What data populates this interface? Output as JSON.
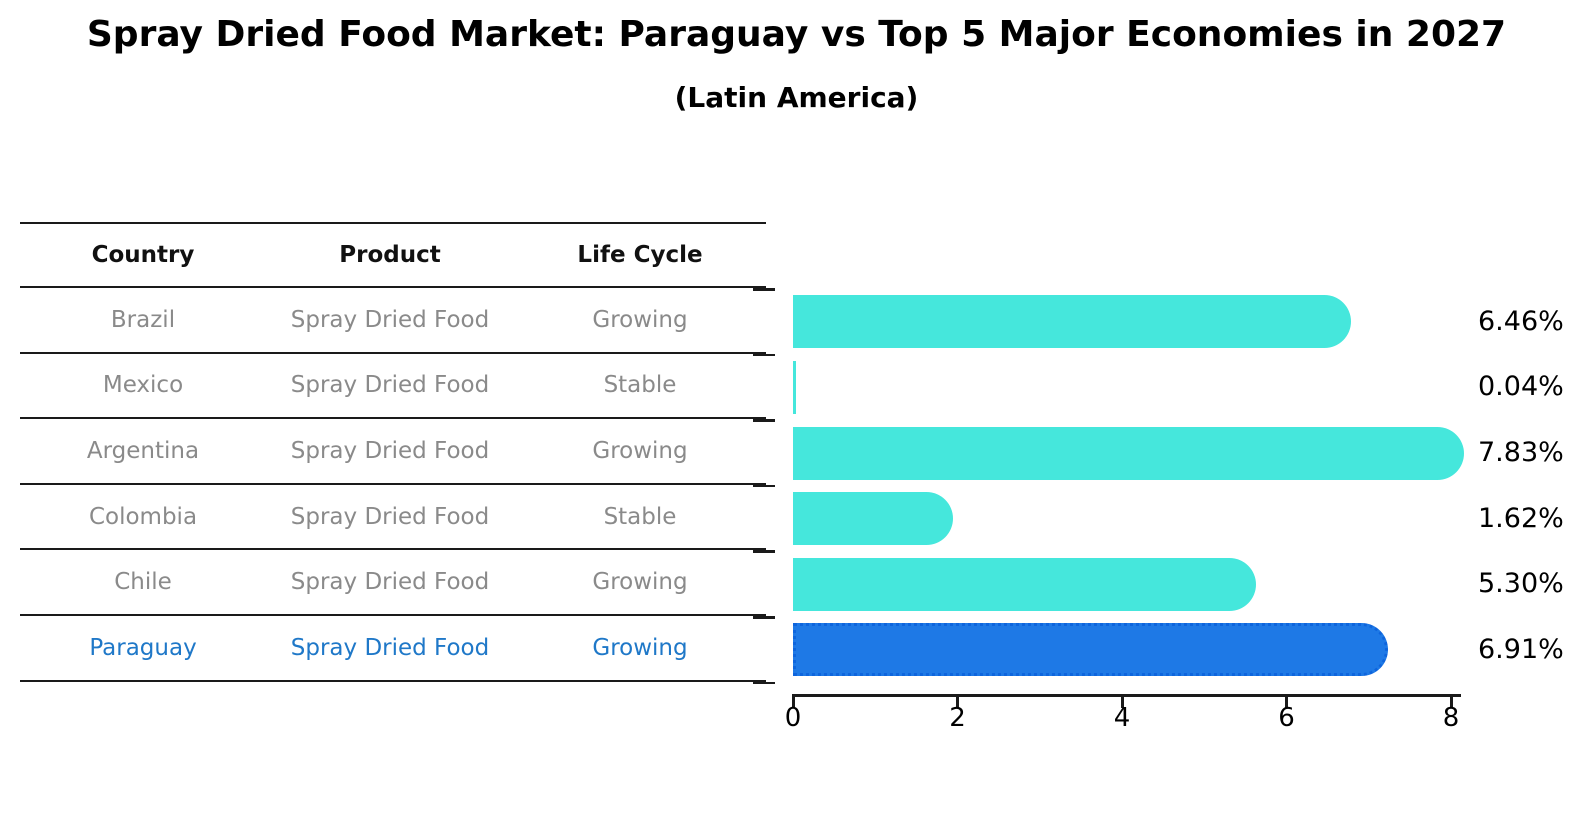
{
  "title": "Spray Dried Food Market: Paraguay vs Top 5 Major Economies in 2027",
  "subtitle": "(Latin America)",
  "table": {
    "headers": [
      "Country",
      "Product",
      "Life Cycle"
    ],
    "rows": [
      {
        "country": "Brazil",
        "product": "Spray Dried Food",
        "life_cycle": "Growing",
        "highlighted": false
      },
      {
        "country": "Mexico",
        "product": "Spray Dried Food",
        "life_cycle": "Stable",
        "highlighted": false
      },
      {
        "country": "Argentina",
        "product": "Spray Dried Food",
        "life_cycle": "Growing",
        "highlighted": false
      },
      {
        "country": "Colombia",
        "product": "Spray Dried Food",
        "life_cycle": "Stable",
        "highlighted": false
      },
      {
        "country": "Chile",
        "product": "Spray Dried Food",
        "life_cycle": "Growing",
        "highlighted": false
      },
      {
        "country": "Paraguay",
        "product": "Spray Dried Food",
        "life_cycle": "Growing",
        "highlighted": true
      }
    ]
  },
  "chart_data": {
    "type": "bar",
    "orientation": "horizontal",
    "categories": [
      "Brazil",
      "Mexico",
      "Argentina",
      "Colombia",
      "Chile",
      "Paraguay"
    ],
    "values": [
      6.46,
      0.04,
      7.83,
      1.62,
      5.3,
      6.91
    ],
    "value_labels": [
      "6.46%",
      "0.04%",
      "7.83%",
      "1.62%",
      "5.30%",
      "6.91%"
    ],
    "x_ticks": [
      "0",
      "2",
      "4",
      "6",
      "8"
    ],
    "x_tick_values": [
      0,
      2,
      4,
      6,
      8
    ],
    "xlim": [
      0,
      8.2
    ],
    "grid": false,
    "legend": false,
    "highlight_category": "Paraguay",
    "title": "Spray Dried Food Market: Paraguay vs Top 5 Major Economies in 2027",
    "subtitle": "(Latin America)"
  },
  "colors": {
    "bar": "#45e7dc",
    "highlight_bar": "#1e79e6",
    "highlight_bar_border": "#0e65dd",
    "highlight_text": "#1f78c8",
    "row_text": "#8a8a8a",
    "header_text": "#111111",
    "axis": "#1a1a1a",
    "background": "#ffffff"
  }
}
